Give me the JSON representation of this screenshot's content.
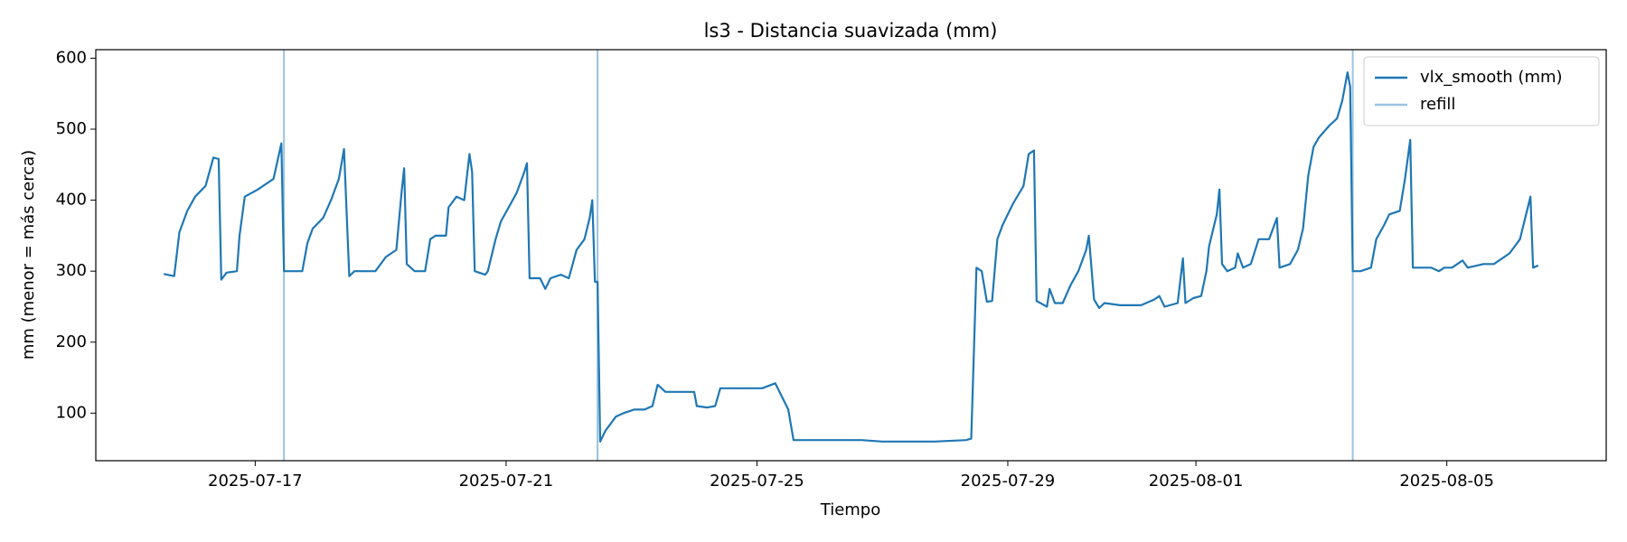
{
  "chart_data": {
    "type": "line",
    "title": "ls3 - Distancia suavizada (mm)",
    "xlabel": "Tiempo",
    "ylabel": "mm (menor = más cerca)",
    "x": [
      "2025-07-15 13:00",
      "2025-07-15 17:00",
      "2025-07-15 19:00",
      "2025-07-15 22:00",
      "2025-07-16 01:00",
      "2025-07-16 05:00",
      "2025-07-16 08:00",
      "2025-07-16 10:00",
      "2025-07-16 11:00",
      "2025-07-16 13:00",
      "2025-07-16 17:00",
      "2025-07-16 18:00",
      "2025-07-16 20:00",
      "2025-07-17 01:00",
      "2025-07-17 07:00",
      "2025-07-17 10:00",
      "2025-07-17 11:00",
      "2025-07-17 18:00",
      "2025-07-17 20:00",
      "2025-07-17 22:00",
      "2025-07-18 02:00",
      "2025-07-18 05:00",
      "2025-07-18 08:00",
      "2025-07-18 10:00",
      "2025-07-18 12:00",
      "2025-07-18 14:00",
      "2025-07-18 18:00",
      "2025-07-18 22:00",
      "2025-07-19 02:00",
      "2025-07-19 06:00",
      "2025-07-19 08:00",
      "2025-07-19 09:00",
      "2025-07-19 10:00",
      "2025-07-19 13:00",
      "2025-07-19 17:00",
      "2025-07-19 19:00",
      "2025-07-19 21:00",
      "2025-07-20 01:00",
      "2025-07-20 02:00",
      "2025-07-20 05:00",
      "2025-07-20 08:00",
      "2025-07-20 10:00",
      "2025-07-20 11:00",
      "2025-07-20 12:00",
      "2025-07-20 16:00",
      "2025-07-20 17:00",
      "2025-07-20 20:00",
      "2025-07-20 22:00",
      "2025-07-21 01:00",
      "2025-07-21 04:00",
      "2025-07-21 07:00",
      "2025-07-21 08:00",
      "2025-07-21 09:00",
      "2025-07-21 13:00",
      "2025-07-21 15:00",
      "2025-07-21 17:00",
      "2025-07-21 21:00",
      "2025-07-22 00:00",
      "2025-07-22 03:00",
      "2025-07-22 06:00",
      "2025-07-22 08:00",
      "2025-07-22 09:00",
      "2025-07-22 10:00",
      "2025-07-22 11:00",
      "2025-07-22 12:00",
      "2025-07-22 14:00",
      "2025-07-22 18:00",
      "2025-07-22 21:00",
      "2025-07-23 01:00",
      "2025-07-23 05:00",
      "2025-07-23 08:00",
      "2025-07-23 10:00",
      "2025-07-23 13:00",
      "2025-07-23 19:00",
      "2025-07-24 00:00",
      "2025-07-24 01:00",
      "2025-07-24 05:00",
      "2025-07-24 08:00",
      "2025-07-24 10:00",
      "2025-07-24 15:00",
      "2025-07-24 20:00",
      "2025-07-25 02:00",
      "2025-07-25 07:00",
      "2025-07-25 10:00",
      "2025-07-25 12:00",
      "2025-07-25 14:00",
      "2025-07-25 20:00",
      "2025-07-26 04:00",
      "2025-07-26 16:00",
      "2025-07-27 00:00",
      "2025-07-27 12:00",
      "2025-07-27 20:00",
      "2025-07-28 08:00",
      "2025-07-28 10:00",
      "2025-07-28 12:00",
      "2025-07-28 14:00",
      "2025-07-28 16:00",
      "2025-07-28 18:00",
      "2025-07-28 20:00",
      "2025-07-28 22:00",
      "2025-07-29 02:00",
      "2025-07-29 06:00",
      "2025-07-29 08:00",
      "2025-07-29 10:00",
      "2025-07-29 11:00",
      "2025-07-29 15:00",
      "2025-07-29 16:00",
      "2025-07-29 18:00",
      "2025-07-29 21:00",
      "2025-07-30 00:00",
      "2025-07-30 03:00",
      "2025-07-30 06:00",
      "2025-07-30 07:00",
      "2025-07-30 09:00",
      "2025-07-30 11:00",
      "2025-07-30 13:00",
      "2025-07-30 19:00",
      "2025-07-31 03:00",
      "2025-07-31 08:00",
      "2025-07-31 10:00",
      "2025-07-31 12:00",
      "2025-07-31 17:00",
      "2025-07-31 19:00",
      "2025-07-31 20:00",
      "2025-07-31 23:00",
      "2025-08-01 02:00",
      "2025-08-01 04:00",
      "2025-08-01 05:00",
      "2025-08-01 08:00",
      "2025-08-01 09:00",
      "2025-08-01 10:00",
      "2025-08-01 12:00",
      "2025-08-01 15:00",
      "2025-08-01 16:00",
      "2025-08-01 18:00",
      "2025-08-01 21:00",
      "2025-08-02 00:00",
      "2025-08-02 04:00",
      "2025-08-02 07:00",
      "2025-08-02 08:00",
      "2025-08-02 12:00",
      "2025-08-02 15:00",
      "2025-08-02 17:00",
      "2025-08-02 19:00",
      "2025-08-02 21:00",
      "2025-08-02 23:00",
      "2025-08-03 03:00",
      "2025-08-03 06:00",
      "2025-08-03 08:00",
      "2025-08-03 10:00",
      "2025-08-03 11:00",
      "2025-08-03 12:00",
      "2025-08-03 15:00",
      "2025-08-03 19:00",
      "2025-08-03 21:00",
      "2025-08-04 00:00",
      "2025-08-04 02:00",
      "2025-08-04 06:00",
      "2025-08-04 08:00",
      "2025-08-04 10:00",
      "2025-08-04 11:00",
      "2025-08-04 14:00",
      "2025-08-04 18:00",
      "2025-08-04 21:00",
      "2025-08-04 23:00",
      "2025-08-05 02:00",
      "2025-08-05 06:00",
      "2025-08-05 08:00",
      "2025-08-05 14:00",
      "2025-08-05 18:00",
      "2025-08-06 00:00",
      "2025-08-06 04:00",
      "2025-08-06 08:00",
      "2025-08-06 09:00",
      "2025-08-06 11:00"
    ],
    "series": [
      {
        "name": "vlx_smooth (mm)",
        "color": "#1f77b4",
        "values": [
          296,
          293,
          355,
          385,
          405,
          420,
          460,
          458,
          288,
          298,
          300,
          350,
          405,
          415,
          430,
          480,
          300,
          300,
          340,
          360,
          375,
          400,
          430,
          472,
          293,
          300,
          300,
          300,
          320,
          330,
          410,
          445,
          310,
          300,
          300,
          345,
          350,
          350,
          390,
          405,
          400,
          465,
          440,
          300,
          295,
          300,
          345,
          370,
          390,
          410,
          440,
          452,
          290,
          290,
          275,
          290,
          295,
          290,
          330,
          345,
          375,
          400,
          285,
          285,
          60,
          75,
          95,
          100,
          105,
          105,
          110,
          140,
          130,
          130,
          130,
          110,
          108,
          110,
          135,
          135,
          135,
          135,
          142,
          120,
          105,
          62,
          62,
          62,
          62,
          60,
          60,
          60,
          62,
          64,
          305,
          300,
          257,
          258,
          345,
          365,
          395,
          420,
          465,
          470,
          258,
          250,
          275,
          255,
          255,
          280,
          300,
          330,
          350,
          260,
          248,
          255,
          252,
          252,
          260,
          265,
          250,
          255,
          318,
          255,
          262,
          265,
          300,
          335,
          380,
          415,
          310,
          300,
          305,
          325,
          305,
          310,
          345,
          345,
          375,
          305,
          310,
          330,
          360,
          435,
          475,
          488,
          505,
          515,
          540,
          580,
          560,
          300,
          300,
          305,
          345,
          365,
          380,
          385,
          430,
          485,
          305,
          305,
          305,
          300,
          305,
          305,
          315,
          305,
          310,
          310,
          325,
          345,
          405,
          305,
          308
        ]
      }
    ],
    "refill": {
      "name": "refill",
      "color": "#9ac3e0",
      "x": [
        "2025-07-17 11:00",
        "2025-07-22 11:00",
        "2025-08-03 12:00"
      ]
    },
    "xlim": [
      "2025-07-14 11:00",
      "2025-08-07 13:00"
    ],
    "xticks": [
      "2025-07-17",
      "2025-07-21",
      "2025-07-25",
      "2025-07-29",
      "2025-08-01",
      "2025-08-05"
    ],
    "ylim": [
      33,
      612
    ],
    "yticks": [
      100,
      200,
      300,
      400,
      500,
      600
    ],
    "grid": false,
    "legend": "upper right"
  }
}
